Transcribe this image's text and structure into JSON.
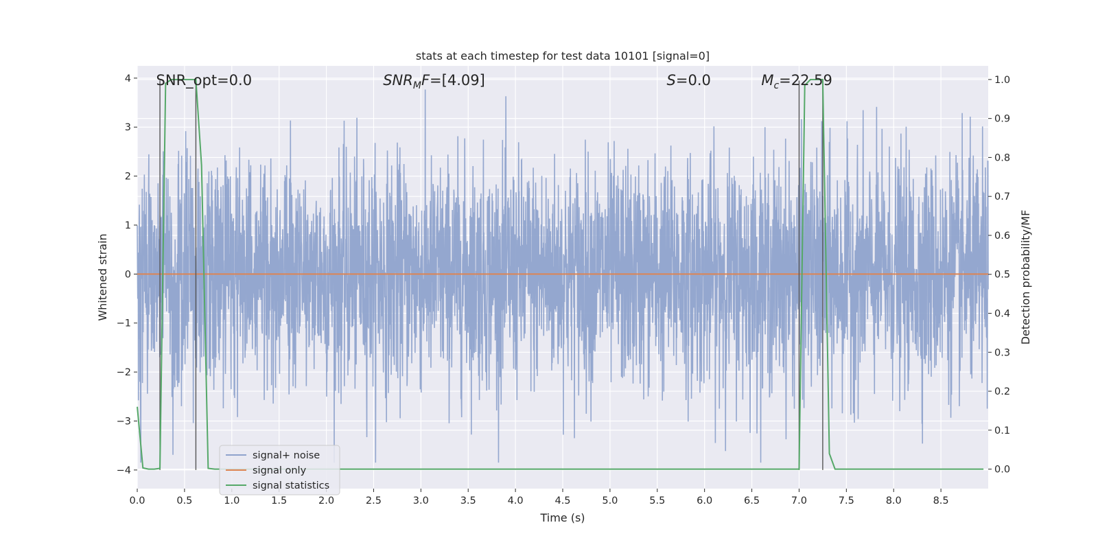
{
  "chart_data": {
    "type": "line",
    "title": "stats at each timestep for test data 10101 [signal=0]",
    "xlabel": "Time (s)",
    "ylabel_left": "Whitened strain",
    "ylabel_right": "Detection probability/MF",
    "xlim": [
      0.0,
      9.0
    ],
    "ylim_left": [
      -4.38,
      4.25
    ],
    "ylim_right": [
      -0.05,
      1.035
    ],
    "x_ticks": [
      0.0,
      0.5,
      1.0,
      1.5,
      2.0,
      2.5,
      3.0,
      3.5,
      4.0,
      4.5,
      5.0,
      5.5,
      6.0,
      6.5,
      7.0,
      7.5,
      8.0,
      8.5
    ],
    "x_tick_labels": [
      "0.0",
      "0.5",
      "1.0",
      "1.5",
      "2.0",
      "2.5",
      "3.0",
      "3.5",
      "4.0",
      "4.5",
      "5.0",
      "5.5",
      "6.0",
      "6.5",
      "7.0",
      "7.5",
      "8.0",
      "8.5"
    ],
    "y_ticks_left": [
      4,
      3,
      2,
      1,
      0,
      -1,
      -2,
      -3,
      -4
    ],
    "y_tick_labels_left": [
      "4",
      "3",
      "2",
      "1",
      "0",
      "−1",
      "−2",
      "−3",
      "−4"
    ],
    "y_ticks_right": [
      1.0,
      0.9,
      0.8,
      0.7,
      0.6,
      0.5,
      0.4,
      0.3,
      0.2,
      0.1,
      0.0
    ],
    "y_tick_labels_right": [
      "1.0",
      "0.9",
      "0.8",
      "0.7",
      "0.6",
      "0.5",
      "0.4",
      "0.3",
      "0.2",
      "0.1",
      "0.0"
    ],
    "grid": true,
    "legend_position": "lower-left",
    "series": [
      {
        "name": "signal+ noise",
        "axis": "left",
        "color": "#8fa3cc",
        "description_values": "whitened strain noise, approx. Gaussian, range about -3.8 to 3.9",
        "envelope": {
          "typical_min": -1.6,
          "typical_max": 1.6,
          "max": 3.9,
          "min": -3.85
        }
      },
      {
        "name": "signal only",
        "axis": "left",
        "color": "#dd8452",
        "x": [
          0.0,
          9.0
        ],
        "y": [
          0.0,
          0.0
        ]
      },
      {
        "name": "signal statistics",
        "axis": "right",
        "color": "#55a868",
        "x": [
          0.0,
          0.06,
          0.12,
          0.18,
          0.24,
          0.3,
          0.36,
          0.42,
          0.48,
          0.54,
          0.62,
          0.68,
          0.75,
          0.82,
          0.9,
          1.0,
          2.0,
          3.0,
          4.0,
          5.0,
          6.0,
          6.9,
          7.0,
          7.06,
          7.12,
          7.18,
          7.25,
          7.32,
          7.38,
          7.45,
          8.0,
          8.95
        ],
        "y": [
          0.16,
          0.003,
          0.0,
          0.0,
          0.002,
          0.99,
          1.0,
          1.0,
          1.0,
          1.0,
          1.0,
          0.78,
          0.002,
          0.0,
          0.0,
          0.0,
          0.0,
          0.0,
          0.0,
          0.0,
          0.0,
          0.0,
          0.0,
          0.985,
          1.0,
          1.0,
          1.0,
          0.04,
          0.0,
          0.0,
          0.0,
          0.0
        ]
      }
    ],
    "vertical_lines": [
      0.24,
      0.62,
      7.0,
      7.25
    ],
    "annotations": [
      {
        "prefix": "SNR_opt=0.0",
        "italic": "",
        "sub": "",
        "suffix": "",
        "x": 0.2
      },
      {
        "prefix": "",
        "italic": "SNR",
        "sub": "M",
        "italic2": "F",
        "suffix": "=[4.09]",
        "x": 2.6
      },
      {
        "prefix": "",
        "italic": "S",
        "sub": "",
        "italic2": "",
        "suffix": "=0.0",
        "x": 5.6
      },
      {
        "prefix": "",
        "italic": "M",
        "sub": "c",
        "italic2": "",
        "suffix": "=22.59",
        "x": 6.6
      }
    ]
  },
  "colors": {
    "plot_bg": "#eaeaf2",
    "grid": "#ffffff",
    "noise": "#8fa3cc",
    "signal": "#dd8452",
    "stats": "#55a868",
    "vline": "#555555"
  }
}
